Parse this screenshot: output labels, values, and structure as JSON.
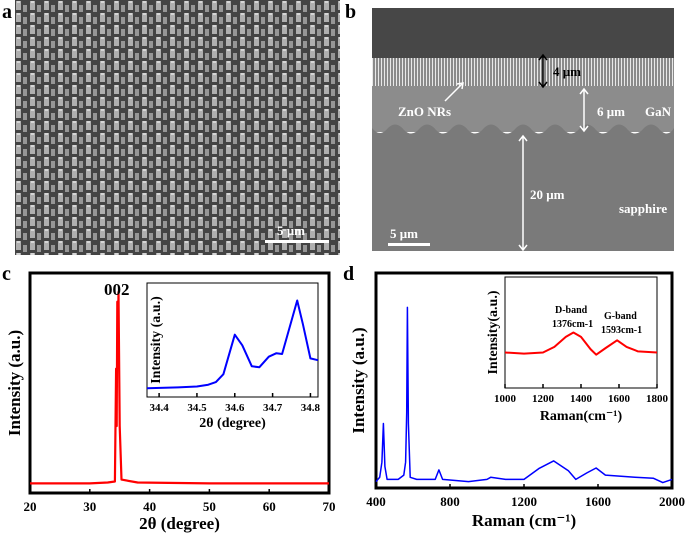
{
  "panels": {
    "a": {
      "label": "a",
      "scale_bar": "5 μm"
    },
    "b": {
      "label": "b",
      "scale_bar": "5 μm",
      "annotations": {
        "nr_thickness": "4 μm",
        "zno": "ZnO NRs",
        "gan_thickness": "6 μm",
        "gan": "GaN",
        "sapphire_thickness": "20 μm",
        "sapphire": "sapphire"
      }
    },
    "c": {
      "label": "c"
    },
    "d": {
      "label": "d"
    }
  },
  "chart_data": [
    {
      "id": "c-main",
      "type": "line",
      "color": "#ff0000",
      "xlabel": "2θ (degree)",
      "ylabel": "Intensity (a.u.)",
      "xlim": [
        20,
        70
      ],
      "ylim": [
        -0.05,
        1.1
      ],
      "xticks": [
        20,
        30,
        40,
        50,
        60,
        70
      ],
      "annotation": "002",
      "x": [
        20,
        30,
        33,
        34.2,
        34.4,
        34.5,
        34.6,
        34.7,
        34.8,
        35.0,
        35.3,
        38,
        50,
        70
      ],
      "y": [
        0,
        0,
        0.005,
        0.01,
        0.6,
        0.3,
        0.95,
        0.7,
        1.0,
        0.3,
        0.02,
        0.005,
        0,
        0
      ]
    },
    {
      "id": "c-inset",
      "type": "line",
      "color": "#0000ff",
      "xlabel": "2θ (degree)",
      "ylabel": "Intensity (a.u.)",
      "xlim": [
        34.368,
        34.82
      ],
      "ylim": [
        -0.1,
        1.2
      ],
      "xticks": [
        34.4,
        34.5,
        34.6,
        34.7,
        34.8
      ],
      "x": [
        34.368,
        34.45,
        34.5,
        34.53,
        34.55,
        34.57,
        34.6,
        34.62,
        34.645,
        34.665,
        34.69,
        34.71,
        34.725,
        34.765,
        34.78,
        34.8,
        34.82
      ],
      "y": [
        0,
        0.01,
        0.02,
        0.04,
        0.07,
        0.16,
        0.61,
        0.49,
        0.25,
        0.24,
        0.36,
        0.4,
        0.39,
        1.0,
        0.73,
        0.34,
        0.32
      ]
    },
    {
      "id": "d-main",
      "type": "line",
      "color": "#0000ff",
      "xlabel": "Raman (cm⁻¹)",
      "ylabel": "Intensity (a.u.)",
      "xlim": [
        400,
        2000
      ],
      "ylim": [
        0,
        1
      ],
      "xticks": [
        400,
        800,
        1200,
        1600,
        2000
      ],
      "x": [
        400,
        420,
        432,
        440,
        448,
        460,
        520,
        550,
        560,
        566,
        570,
        575,
        585,
        620,
        720,
        740,
        760,
        900,
        1000,
        1020,
        1100,
        1200,
        1280,
        1360,
        1440,
        1480,
        1540,
        1590,
        1640,
        1800,
        1900,
        1950,
        2000
      ],
      "y": [
        0.03,
        0.05,
        0.12,
        0.3,
        0.1,
        0.04,
        0.04,
        0.06,
        0.12,
        0.35,
        0.84,
        0.3,
        0.05,
        0.04,
        0.04,
        0.084,
        0.04,
        0.03,
        0.04,
        0.05,
        0.04,
        0.04,
        0.09,
        0.126,
        0.08,
        0.04,
        0.07,
        0.093,
        0.06,
        0.05,
        0.045,
        0.025,
        0.04
      ]
    },
    {
      "id": "d-inset",
      "type": "line",
      "color": "#ff0000",
      "xlabel": "Raman(cm⁻¹)",
      "ylabel": "Intensity(a.u.)",
      "xlim": [
        1000,
        1800
      ],
      "ylim": [
        0,
        1
      ],
      "xticks": [
        1000,
        1200,
        1400,
        1600,
        1800
      ],
      "annotations": [
        {
          "text": "D-band",
          "sub": "1376cm-1"
        },
        {
          "text": "G-band",
          "sub": "1593cm-1"
        }
      ],
      "x": [
        1000,
        1100,
        1200,
        1260,
        1320,
        1360,
        1400,
        1450,
        1480,
        1530,
        1590,
        1640,
        1700,
        1800
      ],
      "y": [
        0.32,
        0.31,
        0.32,
        0.37,
        0.46,
        0.5,
        0.46,
        0.35,
        0.3,
        0.36,
        0.43,
        0.37,
        0.33,
        0.32
      ]
    }
  ]
}
